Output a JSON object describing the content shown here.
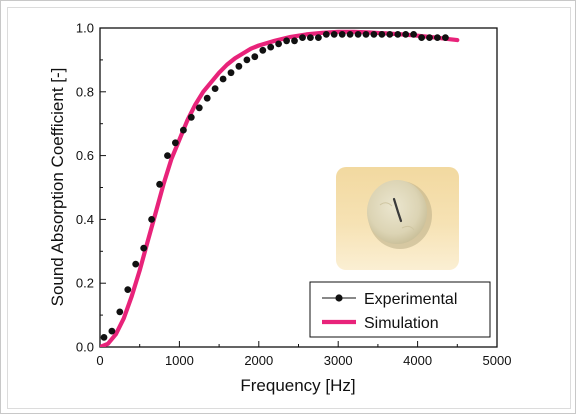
{
  "chart_data": {
    "type": "line",
    "title": "",
    "xlabel": "Frequency [Hz]",
    "ylabel": "Sound Absorption Coefficient [-]",
    "xlim": [
      0,
      5000
    ],
    "ylim": [
      0.0,
      1.0
    ],
    "x_ticks": [
      "0",
      "1000",
      "2000",
      "3000",
      "4000",
      "5000"
    ],
    "y_ticks": [
      "0.0",
      "0.2",
      "0.4",
      "0.6",
      "0.8",
      "1.0"
    ],
    "grid": false,
    "legend_position": "bottom-right",
    "series": [
      {
        "name": "Experimental",
        "style": "markers",
        "color": "#111111",
        "x": [
          50,
          150,
          250,
          350,
          450,
          550,
          650,
          750,
          850,
          950,
          1050,
          1150,
          1250,
          1350,
          1450,
          1550,
          1650,
          1750,
          1850,
          1950,
          2050,
          2150,
          2250,
          2350,
          2450,
          2550,
          2650,
          2750,
          2850,
          2950,
          3050,
          3150,
          3250,
          3350,
          3450,
          3550,
          3650,
          3750,
          3850,
          3950,
          4050,
          4150,
          4250,
          4350
        ],
        "y": [
          0.03,
          0.05,
          0.11,
          0.18,
          0.26,
          0.31,
          0.4,
          0.51,
          0.6,
          0.64,
          0.68,
          0.72,
          0.75,
          0.78,
          0.81,
          0.84,
          0.86,
          0.88,
          0.9,
          0.91,
          0.93,
          0.94,
          0.95,
          0.96,
          0.96,
          0.97,
          0.97,
          0.97,
          0.98,
          0.98,
          0.98,
          0.98,
          0.98,
          0.98,
          0.98,
          0.98,
          0.98,
          0.98,
          0.98,
          0.98,
          0.97,
          0.97,
          0.97,
          0.97
        ]
      },
      {
        "name": "Simulation",
        "style": "line",
        "color": "#e8237a",
        "x": [
          0,
          100,
          200,
          300,
          400,
          500,
          600,
          700,
          800,
          900,
          1000,
          1100,
          1200,
          1300,
          1400,
          1500,
          1600,
          1700,
          1800,
          1900,
          2000,
          2200,
          2400,
          2600,
          2800,
          3000,
          3200,
          3400,
          3600,
          3800,
          4000,
          4200,
          4400,
          4500
        ],
        "y": [
          0.0,
          0.01,
          0.04,
          0.09,
          0.16,
          0.24,
          0.33,
          0.42,
          0.51,
          0.59,
          0.65,
          0.71,
          0.76,
          0.8,
          0.83,
          0.86,
          0.885,
          0.905,
          0.92,
          0.935,
          0.945,
          0.96,
          0.972,
          0.98,
          0.985,
          0.988,
          0.988,
          0.986,
          0.983,
          0.98,
          0.976,
          0.971,
          0.965,
          0.962
        ]
      }
    ],
    "inset": {
      "description_icon": "felt-sample-photo-icon"
    }
  }
}
